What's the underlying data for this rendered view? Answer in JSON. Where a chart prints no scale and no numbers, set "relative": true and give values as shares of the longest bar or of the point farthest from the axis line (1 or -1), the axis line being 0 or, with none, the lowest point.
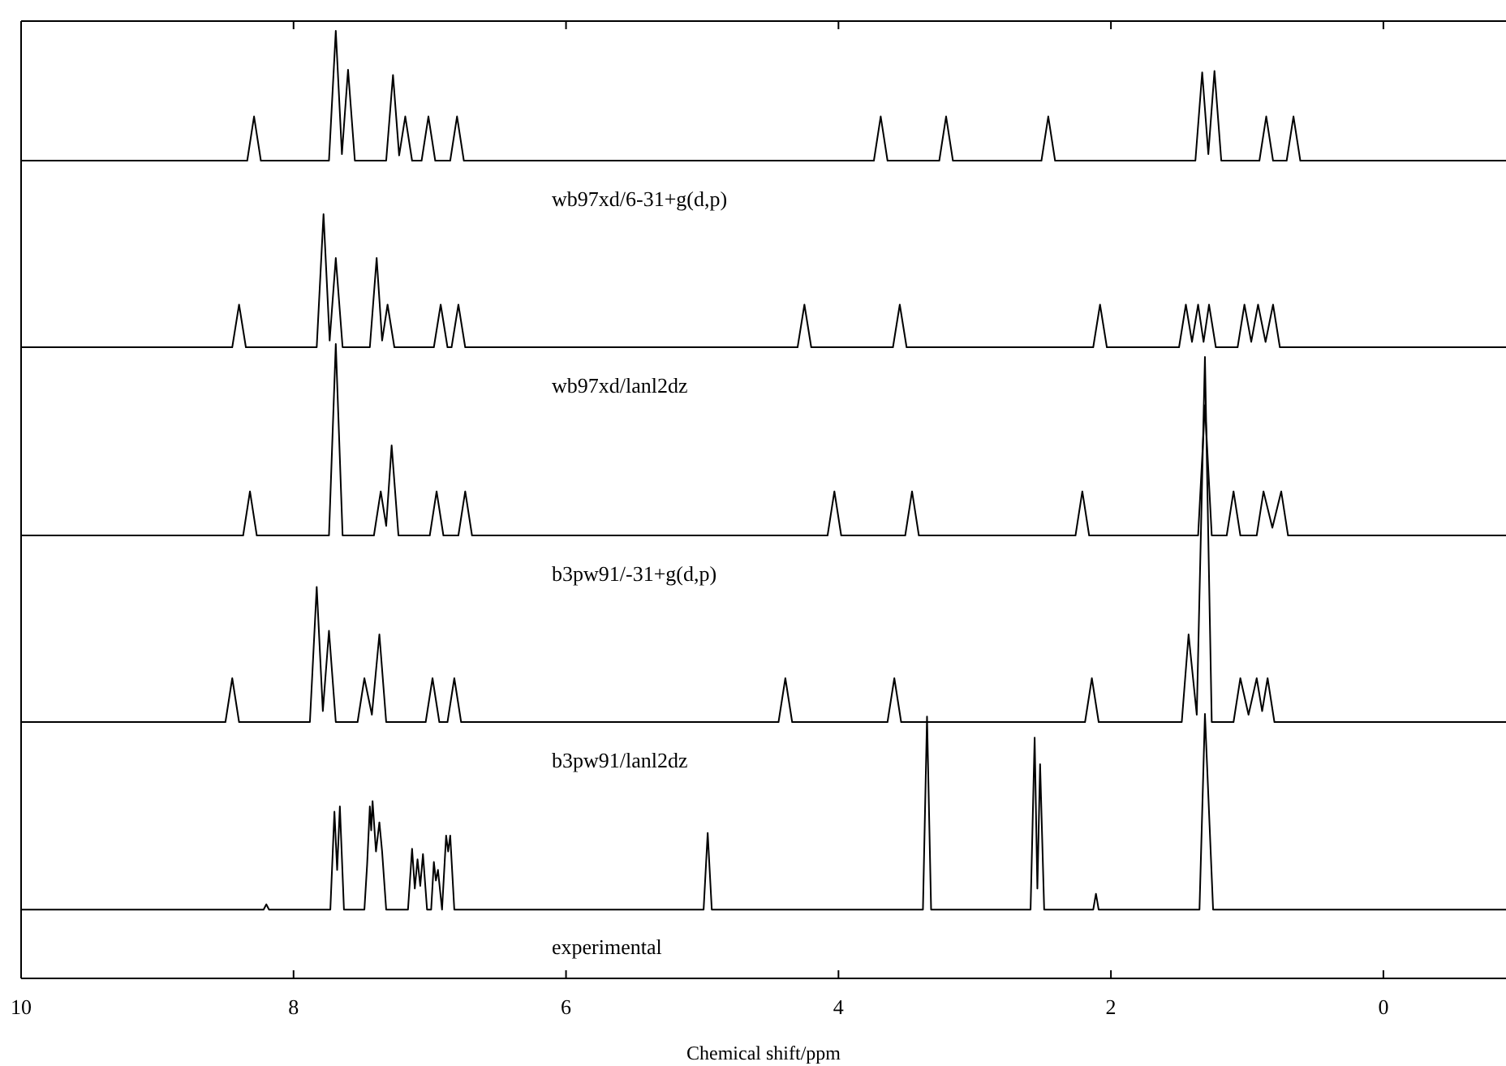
{
  "chart_data": [
    {
      "type": "line",
      "relative": true,
      "xlim": [
        10,
        -0.9
      ],
      "xticks": [
        {
          "value": 10,
          "label": null
        },
        {
          "value": 8,
          "label": null
        },
        {
          "value": 6,
          "label": null
        },
        {
          "value": 4,
          "label": null
        },
        {
          "value": 2,
          "label": null
        },
        {
          "value": 0,
          "label": null
        }
      ],
      "tick_labels": false,
      "annotations": [
        "wb97xd/6-31+g(d,p)"
      ],
      "series": [
        {
          "color": "#000000",
          "x": [
            10,
            8.34,
            8.29,
            8.24,
            7.74,
            7.69,
            7.645,
            7.6,
            7.55,
            7.32,
            7.27,
            7.225,
            7.18,
            7.13,
            7.06,
            7.01,
            6.96,
            6.85,
            6.8,
            6.75,
            3.74,
            3.69,
            3.64,
            3.26,
            3.21,
            3.16,
            2.51,
            2.46,
            2.41,
            1.38,
            1.33,
            1.285,
            1.24,
            1.19,
            0.91,
            0.86,
            0.81,
            0.71,
            0.66,
            0.61,
            -0.9
          ],
          "values": [
            0,
            0,
            0.34,
            0,
            0,
            1,
            0.05,
            0.7,
            0,
            0,
            0.66,
            0.04,
            0.34,
            0,
            0,
            0.34,
            0,
            0,
            0.34,
            0,
            0,
            0.34,
            0,
            0,
            0.34,
            0,
            0,
            0.34,
            0,
            0,
            0.68,
            0.05,
            0.69,
            0,
            0,
            0.34,
            0,
            0,
            0.34,
            0,
            0
          ]
        }
      ]
    },
    {
      "type": "line",
      "relative": true,
      "xlim": [
        10,
        -0.9
      ],
      "tick_labels": false,
      "annotations": [
        "wb97xd/lanl2dz"
      ],
      "series": [
        {
          "color": "#000000",
          "x": [
            10,
            8.45,
            8.4,
            8.35,
            7.83,
            7.78,
            7.735,
            7.69,
            7.64,
            7.44,
            7.39,
            7.35,
            7.31,
            7.26,
            6.97,
            6.92,
            6.87,
            6.84,
            6.79,
            6.74,
            4.3,
            4.25,
            4.2,
            3.6,
            3.55,
            3.5,
            2.13,
            2.08,
            2.03,
            1.5,
            1.45,
            1.405,
            1.36,
            1.32,
            1.28,
            1.23,
            1.07,
            1.02,
            0.97,
            0.92,
            0.865,
            0.81,
            0.76,
            -0.9
          ],
          "values": [
            0,
            0,
            0.32,
            0,
            0,
            1,
            0.05,
            0.67,
            0,
            0,
            0.67,
            0.05,
            0.32,
            0,
            0,
            0.32,
            0,
            0,
            0.32,
            0,
            0,
            0.32,
            0,
            0,
            0.32,
            0,
            0,
            0.32,
            0,
            0,
            0.32,
            0.04,
            0.32,
            0.04,
            0.32,
            0,
            0,
            0.32,
            0.04,
            0.32,
            0.04,
            0.32,
            0,
            0
          ]
        }
      ]
    },
    {
      "type": "line",
      "relative": true,
      "xlim": [
        10,
        -0.9
      ],
      "tick_labels": false,
      "annotations": [
        "b3pw91/-31+g(d,p)"
      ],
      "series": [
        {
          "color": "#000000",
          "x": [
            10,
            8.37,
            8.32,
            8.27,
            7.74,
            7.69,
            7.64,
            7.41,
            7.36,
            7.32,
            7.28,
            7.23,
            7.0,
            6.95,
            6.9,
            6.79,
            6.74,
            6.69,
            4.08,
            4.03,
            3.98,
            3.51,
            3.46,
            3.41,
            2.26,
            2.21,
            2.16,
            1.36,
            1.31,
            1.26,
            1.15,
            1.1,
            1.05,
            0.93,
            0.88,
            0.815,
            0.75,
            0.7,
            -0.9
          ],
          "values": [
            0,
            0,
            0.23,
            0,
            0,
            1,
            0,
            0,
            0.23,
            0.05,
            0.47,
            0,
            0,
            0.23,
            0,
            0,
            0.23,
            0,
            0,
            0.23,
            0,
            0,
            0.23,
            0,
            0,
            0.23,
            0,
            0,
            0.68,
            0,
            0,
            0.23,
            0,
            0,
            0.23,
            0.04,
            0.23,
            0,
            0
          ]
        }
      ]
    },
    {
      "type": "line",
      "relative": true,
      "xlim": [
        10,
        -0.9
      ],
      "tick_labels": false,
      "annotations": [
        "b3pw91/lanl2dz"
      ],
      "series": [
        {
          "color": "#000000",
          "x": [
            10,
            8.5,
            8.45,
            8.4,
            7.88,
            7.83,
            7.785,
            7.74,
            7.69,
            7.53,
            7.48,
            7.425,
            7.37,
            7.32,
            7.03,
            6.98,
            6.93,
            6.87,
            6.82,
            6.77,
            4.44,
            4.39,
            4.34,
            3.64,
            3.59,
            3.54,
            2.19,
            2.14,
            2.09,
            1.48,
            1.43,
            1.37,
            1.31,
            1.26,
            1.1,
            1.05,
            0.99,
            0.93,
            0.89,
            0.85,
            0.8,
            -0.9
          ],
          "values": [
            0,
            0,
            0.12,
            0,
            0,
            0.37,
            0.03,
            0.25,
            0,
            0,
            0.12,
            0.02,
            0.24,
            0,
            0,
            0.12,
            0,
            0,
            0.12,
            0,
            0,
            0.12,
            0,
            0,
            0.12,
            0,
            0,
            0.12,
            0,
            0,
            0.24,
            0.02,
            1,
            0,
            0,
            0.12,
            0.02,
            0.12,
            0.03,
            0.12,
            0,
            0
          ]
        }
      ]
    },
    {
      "type": "line",
      "relative": true,
      "xlim": [
        10,
        -0.9
      ],
      "xticks": [
        10,
        8,
        6,
        4,
        2,
        0
      ],
      "tick_labels": "x",
      "xlabel": "Chemical shift/ppm",
      "annotations": [
        "experimental"
      ],
      "series": [
        {
          "color": "#000000",
          "x": [
            10,
            8.22,
            8.2,
            8.18,
            7.73,
            7.7,
            7.68,
            7.66,
            7.63,
            7.48,
            7.46,
            7.44,
            7.43,
            7.42,
            7.395,
            7.37,
            7.35,
            7.32,
            7.16,
            7.13,
            7.11,
            7.09,
            7.07,
            7.05,
            7.02,
            6.99,
            6.97,
            6.955,
            6.94,
            6.91,
            6.88,
            6.865,
            6.85,
            6.82,
            4.99,
            4.96,
            4.93,
            3.38,
            3.35,
            3.32,
            2.59,
            2.56,
            2.54,
            2.52,
            2.49,
            2.13,
            2.11,
            2.09,
            1.35,
            1.31,
            1.25,
            -0.9
          ],
          "values": [
            0.26,
            0.26,
            0.28,
            0.26,
            0.26,
            0.63,
            0.41,
            0.65,
            0.26,
            0.26,
            0.43,
            0.65,
            0.56,
            0.67,
            0.48,
            0.59,
            0.48,
            0.26,
            0.26,
            0.49,
            0.34,
            0.45,
            0.35,
            0.47,
            0.26,
            0.26,
            0.44,
            0.37,
            0.41,
            0.26,
            0.54,
            0.48,
            0.54,
            0.26,
            0.26,
            0.55,
            0.26,
            0.26,
            0.99,
            0.26,
            0.26,
            0.91,
            0.34,
            0.81,
            0.26,
            0.26,
            0.32,
            0.26,
            0.26,
            1,
            0.26,
            0.26
          ]
        }
      ]
    }
  ]
}
